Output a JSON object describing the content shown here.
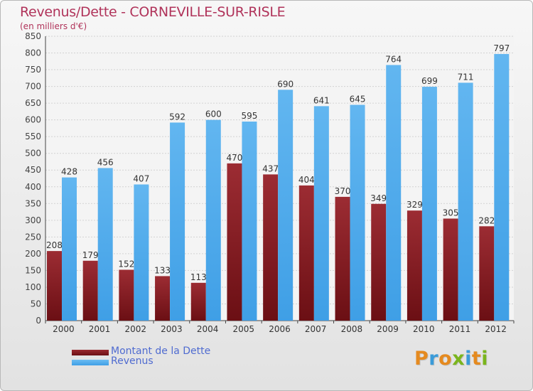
{
  "header": {
    "title": "Revenus/Dette - CORNEVILLE-SUR-RISLE",
    "subtitle": "(en milliers d'€)"
  },
  "colors": {
    "dette": "#6b0f14",
    "revenus": "#3f9fe6",
    "title": "#b0335a",
    "legend_text": "#4f6bd0"
  },
  "legend": {
    "dette_label": "Montant de la Dette",
    "revenus_label": "Revenus"
  },
  "logo": {
    "text": "Proxiti"
  },
  "chart_data": {
    "type": "bar",
    "title": "Revenus/Dette - CORNEVILLE-SUR-RISLE",
    "subtitle": "(en milliers d'€)",
    "xlabel": "",
    "ylabel": "",
    "categories": [
      "2000",
      "2001",
      "2002",
      "2003",
      "2004",
      "2005",
      "2006",
      "2007",
      "2008",
      "2009",
      "2010",
      "2011",
      "2012"
    ],
    "series": [
      {
        "name": "Montant de la Dette",
        "values": [
          208,
          179,
          152,
          133,
          113,
          470,
          437,
          404,
          370,
          349,
          329,
          305,
          282
        ]
      },
      {
        "name": "Revenus",
        "values": [
          428,
          456,
          407,
          592,
          600,
          595,
          690,
          641,
          645,
          764,
          699,
          711,
          797
        ]
      }
    ],
    "ylim": [
      0,
      850
    ],
    "yticks": [
      0,
      50,
      100,
      150,
      200,
      250,
      300,
      350,
      400,
      450,
      500,
      550,
      600,
      650,
      700,
      750,
      800,
      850
    ],
    "grid": true,
    "legend_position": "bottom-left",
    "data_labels": true
  }
}
